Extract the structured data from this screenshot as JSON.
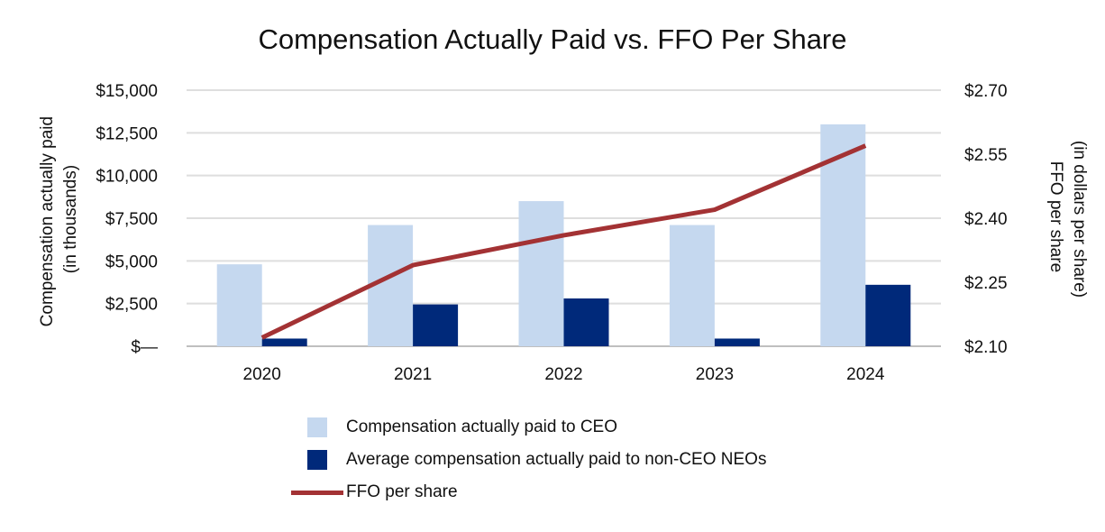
{
  "chart_data": {
    "type": "bar+line",
    "title": "Compensation Actually Paid vs. FFO Per Share",
    "categories": [
      "2020",
      "2021",
      "2022",
      "2023",
      "2024"
    ],
    "y_left": {
      "label_line1": "Compensation actually paid",
      "label_line2": "(in thousands)",
      "ylim": [
        0,
        15000
      ],
      "ticks": [
        0,
        2500,
        5000,
        7500,
        10000,
        12500,
        15000
      ],
      "tick_labels": [
        "$—",
        "$2,500",
        "$5,000",
        "$7,500",
        "$10,000",
        "$12,500",
        "$15,000"
      ]
    },
    "y_right": {
      "label_line1": "FFO per share",
      "label_line2": "(in dollars per share)",
      "ylim": [
        2.1,
        2.7
      ],
      "ticks": [
        2.1,
        2.25,
        2.4,
        2.55,
        2.7
      ],
      "tick_labels": [
        "$2.10",
        "$2.25",
        "$2.40",
        "$2.55",
        "$2.70"
      ]
    },
    "series": [
      {
        "name": "Compensation actually paid to CEO",
        "kind": "bar",
        "axis": "left",
        "color": "#c5d8ef",
        "values": [
          4800,
          7100,
          8500,
          7100,
          13000
        ]
      },
      {
        "name": "Average compensation actually paid to non-CEO NEOs",
        "kind": "bar",
        "axis": "left",
        "color": "#00297a",
        "values": [
          450,
          2450,
          2800,
          450,
          3600
        ]
      },
      {
        "name": "FFO per share",
        "kind": "line",
        "axis": "right",
        "color": "#a33234",
        "values": [
          2.12,
          2.29,
          2.36,
          2.42,
          2.57
        ]
      }
    ],
    "grid": true,
    "legend_position": "bottom"
  }
}
